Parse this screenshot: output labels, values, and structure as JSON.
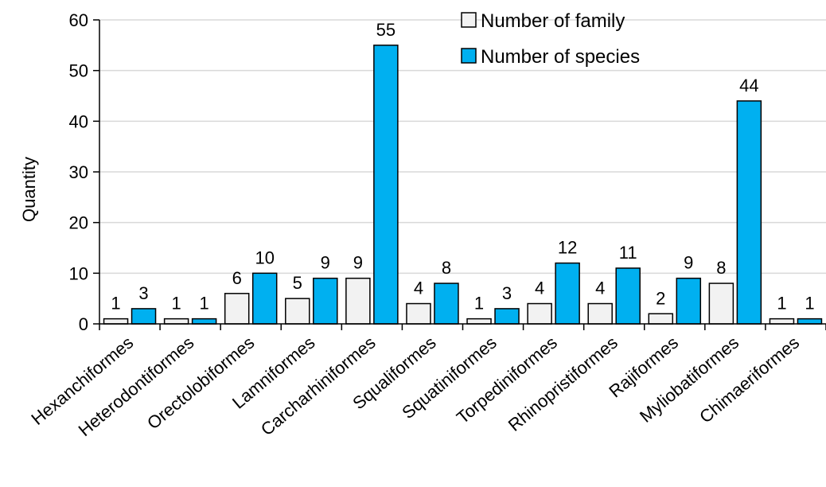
{
  "chart_data": {
    "type": "bar",
    "ylabel": "Quantity",
    "ylim": [
      0,
      60
    ],
    "yticks": [
      0,
      10,
      20,
      30,
      40,
      50,
      60
    ],
    "grid": true,
    "legend_position": "top-right",
    "categories": [
      "Hexanchiformes",
      "Heterodontiformes",
      "Orectolobiformes",
      "Lamniformes",
      "Carcharhiniformes",
      "Squaliformes",
      "Squatiniformes",
      "Torpediniformes",
      "Rhinopristiformes",
      "Rajiformes",
      "Myliobatiformes",
      "Chimaeriformes"
    ],
    "series": [
      {
        "name": "Number of family",
        "color": "#f2f2f2",
        "values": [
          1,
          1,
          6,
          5,
          9,
          4,
          1,
          4,
          4,
          2,
          8,
          1
        ]
      },
      {
        "name": "Number of species",
        "color": "#00b0f0",
        "values": [
          3,
          1,
          10,
          9,
          55,
          8,
          3,
          12,
          11,
          9,
          44,
          1
        ]
      }
    ]
  }
}
